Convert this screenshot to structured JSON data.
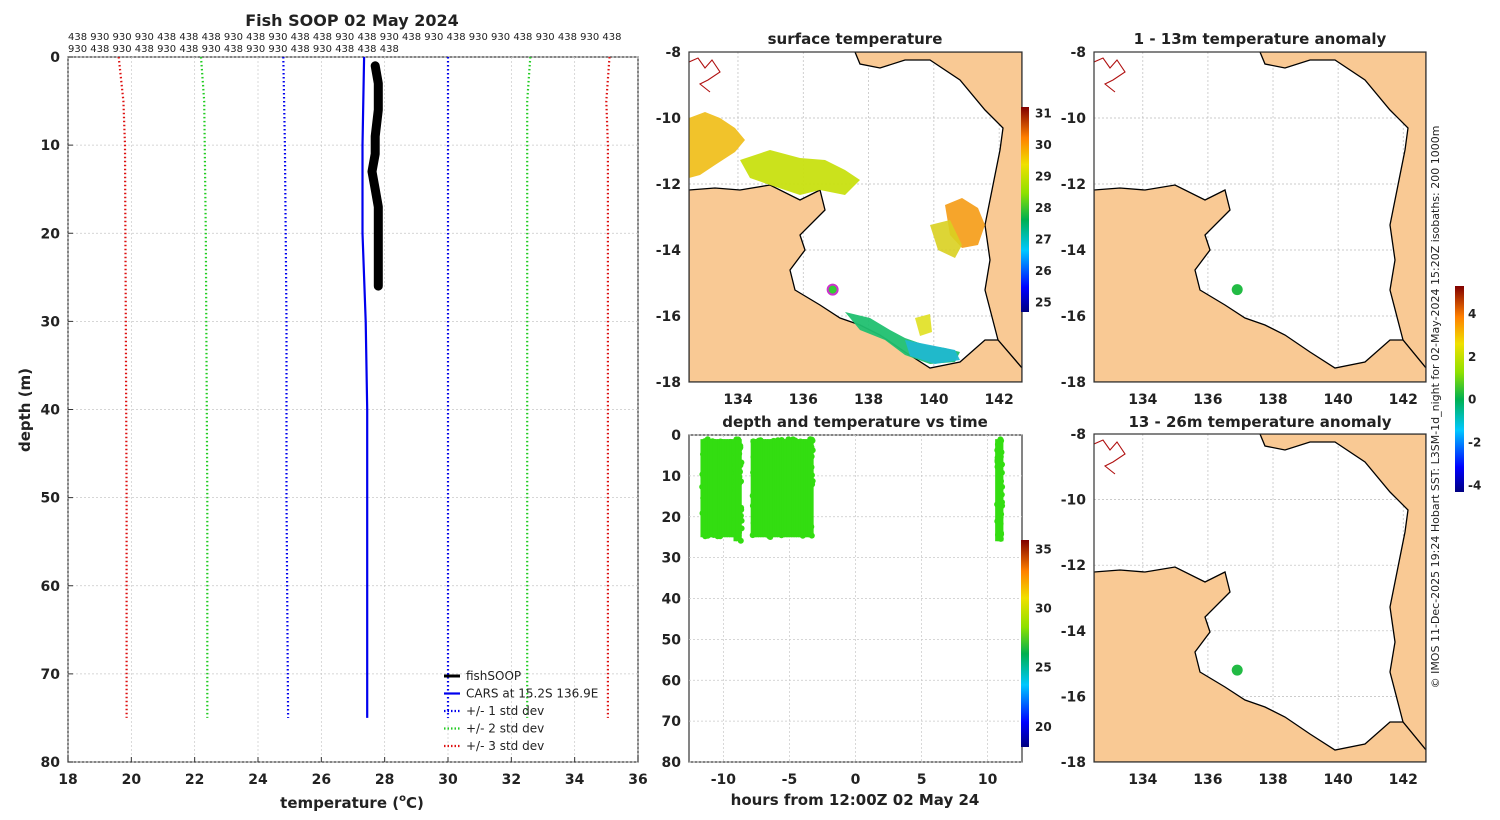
{
  "figure": {
    "title": "Fish SOOP 02 May 2024",
    "credit": "© IMOS 11-Dec-2025 19:24 Hobart SST: L3SM-1d_night for 02-May-2024 15:20Z  isobaths: 200  1000m",
    "station_ids_row1": "438 930 930 930 438 438 438 930 438 930 438 438 930 438 930 438 930 438 930 930 438 930 438 930 438",
    "station_ids_row2": "930 438 930 438 930 438 930 438 930 930 438 930 438 438 438",
    "colors": {
      "land": "#f9c994",
      "fishsoop": "#000000",
      "cars": "#0000ee",
      "std1": "#0000ee",
      "std2": "#22cc22",
      "std3": "#dd1111",
      "time_points": "#33dd11",
      "profile_marker": "#33cc33"
    }
  },
  "chart_data": [
    {
      "id": "profile",
      "type": "line",
      "title": "Fish SOOP 02 May 2024",
      "xlabel": "temperature (°C)",
      "ylabel": "depth (m)",
      "xlim": [
        18,
        36
      ],
      "ylim": [
        0,
        80
      ],
      "y_inverted": true,
      "xticks": [
        "18",
        "20",
        "22",
        "24",
        "26",
        "28",
        "30",
        "32",
        "34",
        "36"
      ],
      "yticks": [
        "0",
        "10",
        "20",
        "30",
        "40",
        "50",
        "60",
        "70",
        "80"
      ],
      "legend_placement": "bottom-right",
      "series": [
        {
          "name": "fishSOOP",
          "style": "thick-solid",
          "color": "#000000",
          "x": [
            27.7,
            27.8,
            27.8,
            27.7,
            27.7,
            27.6,
            27.7,
            27.8,
            27.8,
            27.8,
            27.8,
            27.8
          ],
          "y": [
            1,
            3,
            6,
            9,
            11,
            13,
            15,
            17,
            20,
            23,
            25,
            26
          ]
        },
        {
          "name": "CARS at 15.2S 136.9E",
          "style": "solid",
          "color": "#0000ee",
          "x": [
            27.35,
            27.3,
            27.3,
            27.35,
            27.4,
            27.45,
            27.45,
            27.45
          ],
          "y": [
            0,
            10,
            20,
            25,
            30,
            40,
            60,
            75
          ]
        },
        {
          "name": "+/- 1 std dev",
          "style": "dotted",
          "color": "#0000ee",
          "x_left": [
            24.8,
            24.85,
            24.9,
            24.9,
            24.95
          ],
          "x_right": [
            30.0,
            30.0,
            30.0,
            30.0,
            30.0
          ],
          "y": [
            0,
            10,
            30,
            50,
            75
          ]
        },
        {
          "name": "+/- 2 std dev",
          "style": "dotted",
          "color": "#22cc22",
          "x_left": [
            22.2,
            22.3,
            22.35,
            22.4,
            22.4
          ],
          "x_right": [
            32.6,
            32.5,
            32.5,
            32.5,
            32.5
          ],
          "y": [
            0,
            5,
            20,
            50,
            75
          ]
        },
        {
          "name": "+/- 3 std dev",
          "style": "dotted",
          "color": "#dd1111",
          "x_left": [
            19.6,
            19.75,
            19.8,
            19.85,
            19.85
          ],
          "x_right": [
            35.1,
            35.0,
            35.05,
            35.05,
            35.05
          ],
          "y": [
            0,
            5,
            10,
            50,
            75
          ]
        }
      ]
    },
    {
      "id": "surface_map",
      "type": "heatmap",
      "title": "surface temperature",
      "xlim": [
        132.5,
        142.7
      ],
      "ylim": [
        -18,
        -8
      ],
      "xticks": [
        "134",
        "136",
        "138",
        "140",
        "142"
      ],
      "yticks": [
        "-8",
        "-10",
        "-12",
        "-14",
        "-16",
        "-18"
      ],
      "colorbar_range": [
        24.7,
        31.2
      ],
      "colorbar_ticks": [
        "25",
        "26",
        "27",
        "28",
        "29",
        "30",
        "31"
      ],
      "marker_lon": 136.9,
      "marker_lat": -15.2
    },
    {
      "id": "time_scatter",
      "type": "scatter",
      "title": "depth and temperature vs time",
      "xlabel": "hours from 12:00Z 02 May 24",
      "xlim": [
        -12.6,
        12.6
      ],
      "ylim": [
        0,
        80
      ],
      "y_inverted": true,
      "xticks": [
        "-10",
        "-5",
        "0",
        "5",
        "10"
      ],
      "yticks": [
        "0",
        "10",
        "20",
        "30",
        "40",
        "50",
        "60",
        "70",
        "80"
      ],
      "colorbar_range": [
        18.3,
        35.8
      ],
      "colorbar_ticks": [
        "20",
        "25",
        "30",
        "35"
      ],
      "clusters": [
        {
          "x_min": -11.6,
          "x_max": -9.1,
          "y_min": 1,
          "y_max": 25
        },
        {
          "x_min": -9.1,
          "x_max": -8.6,
          "y_min": 1,
          "y_max": 26
        },
        {
          "x_min": -7.8,
          "x_max": -3.2,
          "y_min": 1,
          "y_max": 25
        },
        {
          "x_min": 10.7,
          "x_max": 11.1,
          "y_min": 1,
          "y_max": 26
        }
      ]
    },
    {
      "id": "anomaly_map_1",
      "type": "heatmap",
      "title": "1 - 13m temperature anomaly",
      "xlim": [
        132.5,
        142.7
      ],
      "ylim": [
        -18,
        -8
      ],
      "xticks": [
        "134",
        "136",
        "138",
        "140",
        "142"
      ],
      "yticks": [
        "-8",
        "-10",
        "-12",
        "-14",
        "-16",
        "-18"
      ],
      "marker_lon": 136.9,
      "marker_lat": -15.2,
      "marker_value": 0.2
    },
    {
      "id": "anomaly_map_2",
      "type": "heatmap",
      "title": "13 - 26m temperature anomaly",
      "xlim": [
        132.5,
        142.7
      ],
      "ylim": [
        -18,
        -8
      ],
      "xticks": [
        "134",
        "136",
        "138",
        "140",
        "142"
      ],
      "yticks": [
        "-8",
        "-10",
        "-12",
        "-14",
        "-16",
        "-18"
      ],
      "colorbar_range": [
        -4.3,
        5.3
      ],
      "colorbar_ticks": [
        "4",
        "2",
        "0",
        "-2",
        "-4"
      ],
      "marker_lon": 136.9,
      "marker_lat": -15.2,
      "marker_value": 0.2
    }
  ]
}
